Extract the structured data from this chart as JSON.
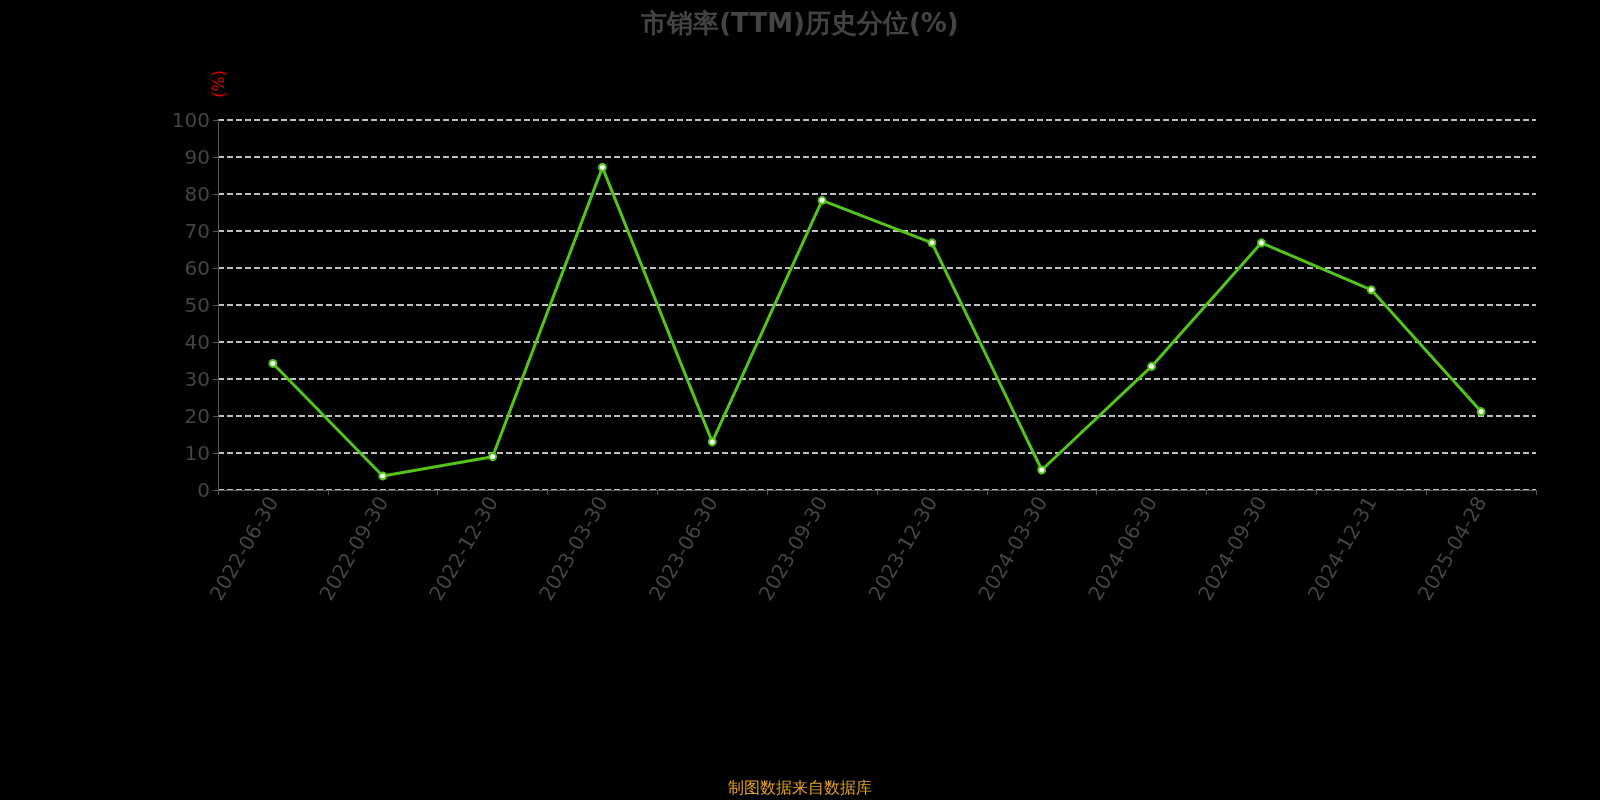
{
  "chart_data": {
    "type": "line",
    "title": "市销率(TTM)历史分位(%)",
    "ylabel": "(%)",
    "categories": [
      "2022-06-30",
      "2022-09-30",
      "2022-12-30",
      "2023-03-30",
      "2023-06-30",
      "2023-09-30",
      "2023-12-30",
      "2024-03-30",
      "2024-06-30",
      "2024-09-30",
      "2024-12-31",
      "2025-04-28"
    ],
    "series": [
      {
        "color": "#52c41a",
        "values": [
          34.2,
          3.8,
          9.0,
          87.2,
          13.0,
          78.3,
          66.8,
          5.4,
          33.4,
          66.8,
          54.1,
          21.2
        ]
      }
    ],
    "ylim": [
      0,
      100
    ],
    "yticks": [
      0,
      10,
      20,
      30,
      40,
      50,
      60,
      70,
      80,
      90,
      100
    ],
    "grid": "y",
    "marker": "circle",
    "line_style": "solid",
    "annotations": [
      "制图数据来自数据库"
    ]
  }
}
